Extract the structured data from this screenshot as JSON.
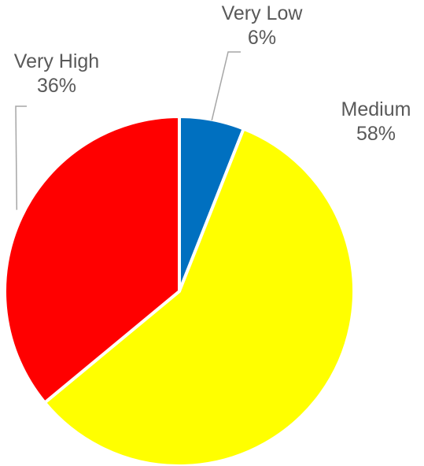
{
  "chart_data": {
    "type": "pie",
    "title": "",
    "categories": [
      "Very Low",
      "Medium",
      "Very High"
    ],
    "values": [
      6,
      58,
      36
    ],
    "value_labels": [
      "6%",
      "58%",
      "36%"
    ],
    "colors": [
      "#0070C0",
      "#FFFF00",
      "#FF0000"
    ],
    "legend": "none",
    "data_labels": "outside with leader lines"
  }
}
